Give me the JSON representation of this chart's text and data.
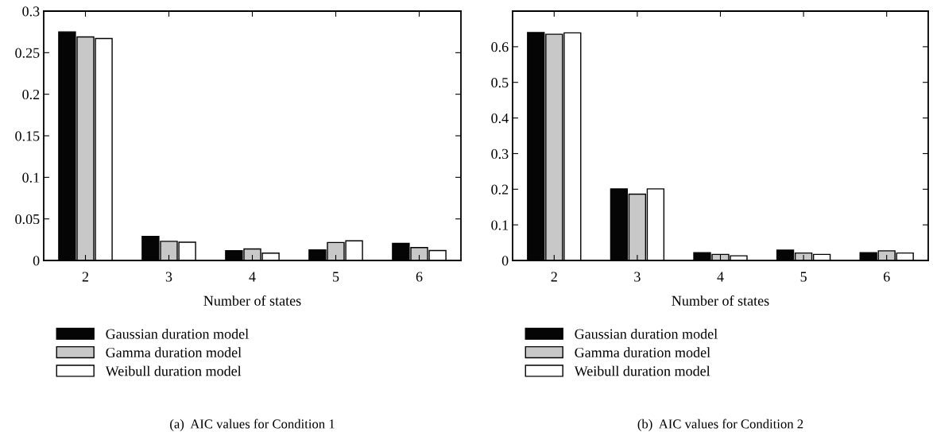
{
  "chart_data": [
    {
      "type": "bar",
      "xlabel": "Number of states",
      "categories": [
        "2",
        "3",
        "4",
        "5",
        "6"
      ],
      "series": [
        {
          "name": "Gaussian duration model",
          "color": "#050505",
          "values": [
            0.275,
            0.029,
            0.0117,
            0.0127,
            0.0205
          ]
        },
        {
          "name": "Gamma duration model",
          "color": "#c8c8c8",
          "values": [
            0.269,
            0.023,
            0.0138,
            0.0216,
            0.0155
          ]
        },
        {
          "name": "Weibull duration model",
          "color": "#ffffff",
          "values": [
            0.267,
            0.022,
            0.0088,
            0.0237,
            0.012
          ]
        }
      ],
      "ylim": [
        0,
        0.3
      ],
      "yticks": [
        0,
        0.05,
        0.1,
        0.15,
        0.2,
        0.25,
        0.3
      ],
      "legend": "bottom",
      "grid": false,
      "annotations": [
        "(a)  AIC values for Condition 1"
      ]
    },
    {
      "type": "bar",
      "xlabel": "Number of states",
      "categories": [
        "2",
        "3",
        "4",
        "5",
        "6"
      ],
      "series": [
        {
          "name": "Gaussian duration model",
          "color": "#050505",
          "values": [
            0.64,
            0.201,
            0.022,
            0.029,
            0.022
          ]
        },
        {
          "name": "Gamma duration model",
          "color": "#c8c8c8",
          "values": [
            0.635,
            0.186,
            0.017,
            0.021,
            0.027
          ]
        },
        {
          "name": "Weibull duration model",
          "color": "#ffffff",
          "values": [
            0.639,
            0.201,
            0.013,
            0.017,
            0.021
          ]
        }
      ],
      "ylim": [
        0,
        0.7
      ],
      "yticks": [
        0,
        0.1,
        0.2,
        0.3,
        0.4,
        0.5,
        0.6,
        {
          "value": 0.7,
          "label": null
        }
      ],
      "legend": "bottom",
      "grid": false,
      "annotations": [
        "(b)  AIC values for Condition 2"
      ]
    }
  ]
}
